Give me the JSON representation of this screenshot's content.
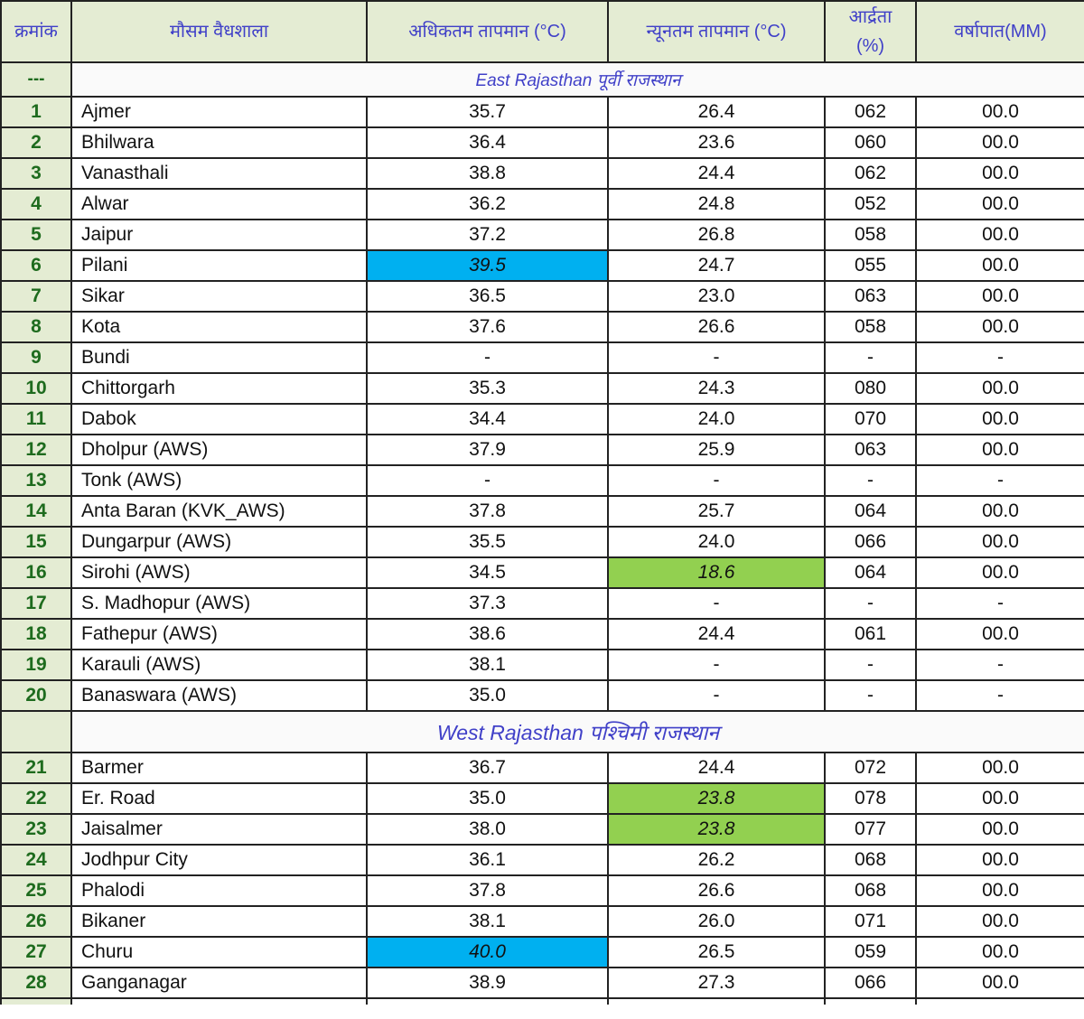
{
  "header": {
    "serial": "क्रमांक",
    "station": "मौसम वैधशाला",
    "max_temp": "अधिकतम तापमान (°C)",
    "min_temp": "न्यूनतम तापमान (°C)",
    "humidity_line1": "आर्द्रता",
    "humidity_line2": "(%)",
    "rainfall": "वर्षापात(MM)"
  },
  "colors": {
    "highlight_max": "#00b0f0",
    "highlight_min": "#92d050"
  },
  "sections": [
    {
      "key": "east",
      "index": "---",
      "title": "East Rajasthan पूर्वी राजस्थान",
      "rows": [
        [
          "1",
          "Ajmer",
          "35.7",
          "26.4",
          "062",
          "00.0"
        ],
        [
          "2",
          "Bhilwara",
          "36.4",
          "23.6",
          "060",
          "00.0"
        ],
        [
          "3",
          "Vanasthali",
          "38.8",
          "24.4",
          "062",
          "00.0"
        ],
        [
          "4",
          "Alwar",
          "36.2",
          "24.8",
          "052",
          "00.0"
        ],
        [
          "5",
          "Jaipur",
          "37.2",
          "26.8",
          "058",
          "00.0"
        ],
        [
          "6",
          "Pilani",
          "39.5",
          "24.7",
          "055",
          "00.0"
        ],
        [
          "7",
          "Sikar",
          "36.5",
          "23.0",
          "063",
          "00.0"
        ],
        [
          "8",
          "Kota",
          "37.6",
          "26.6",
          "058",
          "00.0"
        ],
        [
          "9",
          "Bundi",
          "-",
          "-",
          "-",
          "-"
        ],
        [
          "10",
          "Chittorgarh",
          "35.3",
          "24.3",
          "080",
          "00.0"
        ],
        [
          "11",
          "Dabok",
          "34.4",
          "24.0",
          "070",
          "00.0"
        ],
        [
          "12",
          "Dholpur (AWS)",
          "37.9",
          "25.9",
          "063",
          "00.0"
        ],
        [
          "13",
          "Tonk (AWS)",
          "-",
          "-",
          "-",
          "-"
        ],
        [
          "14",
          "Anta Baran (KVK_AWS)",
          "37.8",
          "25.7",
          "064",
          "00.0"
        ],
        [
          "15",
          "Dungarpur (AWS)",
          "35.5",
          "24.0",
          "066",
          "00.0"
        ],
        [
          "16",
          "Sirohi (AWS)",
          "34.5",
          "18.6",
          "064",
          "00.0"
        ],
        [
          "17",
          "S. Madhopur (AWS)",
          "37.3",
          "-",
          "-",
          "-"
        ],
        [
          "18",
          "Fathepur (AWS)",
          "38.6",
          "24.4",
          "061",
          "00.0"
        ],
        [
          "19",
          "Karauli (AWS)",
          "38.1",
          "-",
          "-",
          "-"
        ],
        [
          "20",
          "Banaswara (AWS)",
          "35.0",
          "-",
          "-",
          "-"
        ]
      ]
    },
    {
      "key": "west",
      "index": "",
      "title": "West Rajasthan पश्चिमी राजस्थान",
      "rows": [
        [
          "21",
          "Barmer",
          "36.7",
          "24.4",
          "072",
          "00.0"
        ],
        [
          "22",
          "Er. Road",
          "35.0",
          "23.8",
          "078",
          "00.0"
        ],
        [
          "23",
          "Jaisalmer",
          "38.0",
          "23.8",
          "077",
          "00.0"
        ],
        [
          "24",
          "Jodhpur City",
          "36.1",
          "26.2",
          "068",
          "00.0"
        ],
        [
          "25",
          "Phalodi",
          "37.8",
          "26.6",
          "068",
          "00.0"
        ],
        [
          "26",
          "Bikaner",
          "38.1",
          "26.0",
          "071",
          "00.0"
        ],
        [
          "27",
          "Churu",
          "40.0",
          "26.5",
          "059",
          "00.0"
        ],
        [
          "28",
          "Ganganagar",
          "38.9",
          "27.3",
          "066",
          "00.0"
        ]
      ]
    }
  ],
  "highlights": {
    "max": [
      "6",
      "27"
    ],
    "min": [
      "16",
      "22",
      "23"
    ]
  }
}
